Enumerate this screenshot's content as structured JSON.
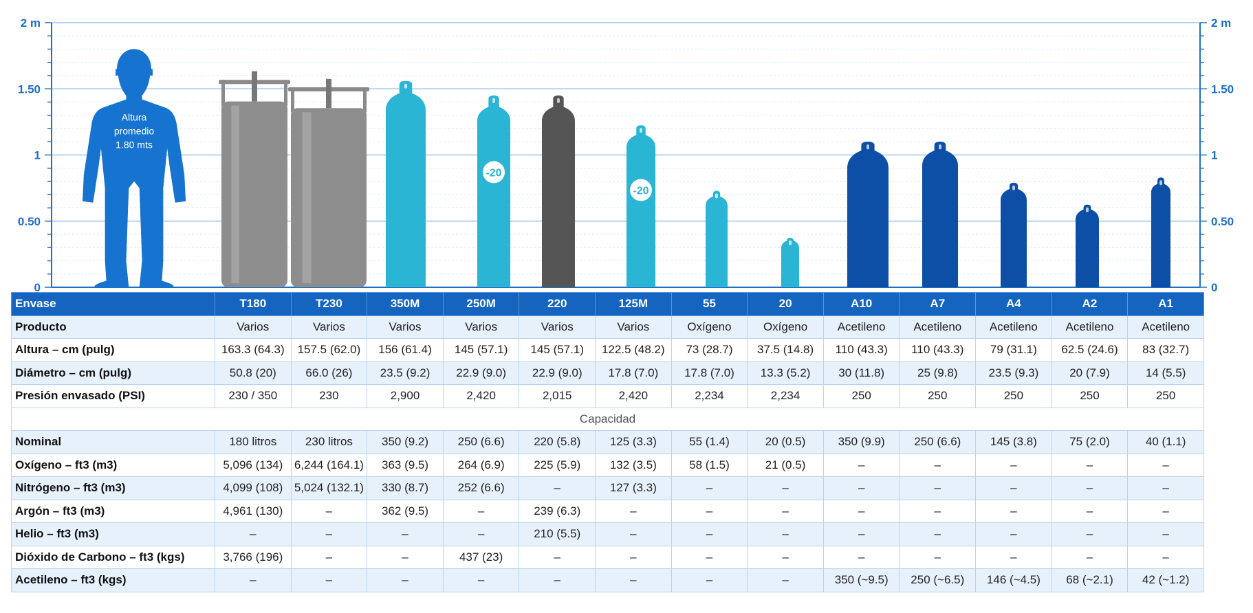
{
  "chart_data": {
    "type": "bar",
    "title": "",
    "ylabel": "",
    "xlabel": "",
    "ylim": [
      0,
      2
    ],
    "y_ticks": [
      "0",
      "0.50",
      "1",
      "1.50",
      "2 m"
    ],
    "grid": true,
    "reference": {
      "label_lines": [
        "Altura",
        "promedio",
        "1.80 mts"
      ],
      "value": 1.8,
      "color": "#1673d0"
    },
    "categories": [
      "T180",
      "T230",
      "350M",
      "250M",
      "220",
      "125M",
      "55",
      "20",
      "A10",
      "A7",
      "A4",
      "A2",
      "A1"
    ],
    "values": [
      1.633,
      1.575,
      1.56,
      1.45,
      1.45,
      1.225,
      0.73,
      0.375,
      1.1,
      1.1,
      0.79,
      0.625,
      0.83
    ],
    "badges": [
      "",
      "",
      "",
      "-20",
      "",
      "-20",
      "",
      "",
      "",
      "",
      "",
      "",
      ""
    ],
    "colors": {
      "tank": "#8d8d8d",
      "oxygen_family": "#2bb5d4",
      "dark": "#555555",
      "acetylene": "#0d4ea6",
      "axis": "#1f6fc4",
      "header_bg": "#1565c0"
    }
  },
  "table": {
    "header": [
      "Envase",
      "T180",
      "T230",
      "350M",
      "250M",
      "220",
      "125M",
      "55",
      "20",
      "A10",
      "A7",
      "A4",
      "A2",
      "A1"
    ],
    "rows_top": [
      [
        "Producto",
        "Varios",
        "Varios",
        "Varios",
        "Varios",
        "Varios",
        "Varios",
        "Oxígeno",
        "Oxígeno",
        "Acetileno",
        "Acetileno",
        "Acetileno",
        "Acetileno",
        "Acetileno"
      ],
      [
        "Altura – cm (pulg)",
        "163.3 (64.3)",
        "157.5 (62.0)",
        "156 (61.4)",
        "145 (57.1)",
        "145 (57.1)",
        "122.5 (48.2)",
        "73 (28.7)",
        "37.5 (14.8)",
        "110 (43.3)",
        "110 (43.3)",
        "79 (31.1)",
        "62.5 (24.6)",
        "83 (32.7)"
      ],
      [
        "Diámetro – cm (pulg)",
        "50.8 (20)",
        "66.0 (26)",
        "23.5 (9.2)",
        "22.9 (9.0)",
        "22.9 (9.0)",
        "17.8 (7.0)",
        "17.8 (7.0)",
        "13.3 (5.2)",
        "30 (11.8)",
        "25 (9.8)",
        "23.5 (9.3)",
        "20 (7.9)",
        "14 (5.5)"
      ],
      [
        "Presión envasado (PSI)",
        "230 / 350",
        "230",
        "2,900",
        "2,420",
        "2,015",
        "2,420",
        "2,234",
        "2,234",
        "250",
        "250",
        "250",
        "250",
        "250"
      ]
    ],
    "section_title": "Capacidad",
    "rows_bottom": [
      [
        "Nominal",
        "180 litros",
        "230 litros",
        "350 (9.2)",
        "250 (6.6)",
        "220 (5.8)",
        "125 (3.3)",
        "55 (1.4)",
        "20 (0.5)",
        "350 (9.9)",
        "250 (6.6)",
        "145 (3.8)",
        "75 (2.0)",
        "40 (1.1)"
      ],
      [
        "Oxígeno – ft3 (m3)",
        "5,096 (134)",
        "6,244 (164.1)",
        "363 (9.5)",
        "264 (6.9)",
        "225 (5.9)",
        "132 (3.5)",
        "58 (1.5)",
        "21 (0.5)",
        "–",
        "–",
        "–",
        "–",
        "–"
      ],
      [
        "Nitrógeno – ft3 (m3)",
        "4,099 (108)",
        "5,024 (132.1)",
        "330 (8.7)",
        "252 (6.6)",
        "–",
        "127 (3.3)",
        "–",
        "–",
        "–",
        "–",
        "–",
        "–",
        "–"
      ],
      [
        "Argón – ft3 (m3)",
        "4,961 (130)",
        "–",
        "362 (9.5)",
        "–",
        "239 (6.3)",
        "–",
        "–",
        "–",
        "–",
        "–",
        "–",
        "–",
        "–"
      ],
      [
        "Helio – ft3 (m3)",
        "–",
        "–",
        "–",
        "–",
        "210 (5.5)",
        "–",
        "–",
        "–",
        "–",
        "–",
        "–",
        "–",
        "–"
      ],
      [
        "Dióxido de Carbono – ft3 (kgs)",
        "3,766 (196)",
        "–",
        "–",
        "437 (23)",
        "–",
        "–",
        "–",
        "–",
        "–",
        "–",
        "–",
        "–",
        "–"
      ],
      [
        "Acetileno – ft3 (kgs)",
        "–",
        "–",
        "–",
        "–",
        "–",
        "–",
        "–",
        "–",
        "350 (~9.5)",
        "250 (~6.5)",
        "146 (~4.5)",
        "68 (~2.1)",
        "42 (~1.2)"
      ]
    ]
  }
}
